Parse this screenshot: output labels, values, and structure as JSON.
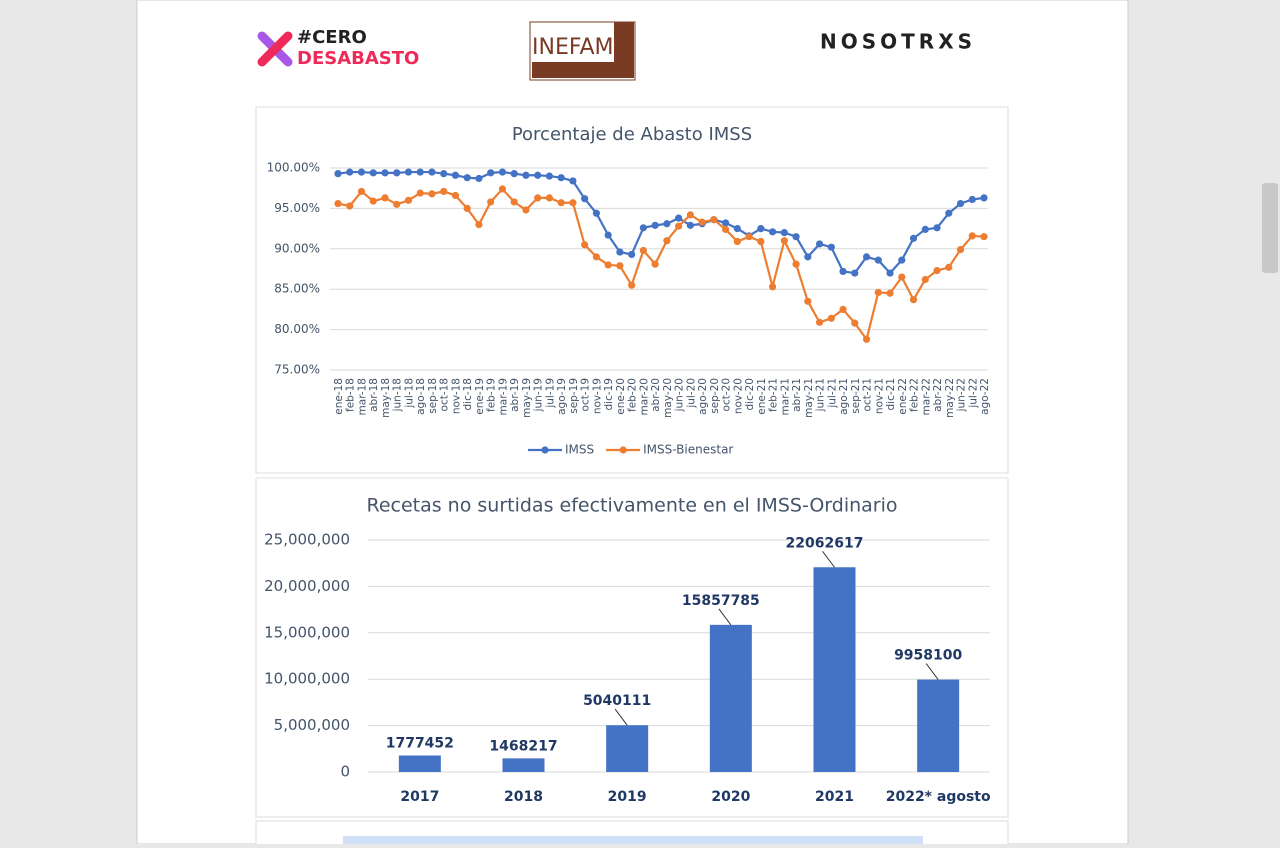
{
  "logos": {
    "cero_top": "#CERO",
    "cero_bottom": "DESABASTO",
    "inefam": "INEFAM",
    "nosotrxs": "NOSOTRXS"
  },
  "chart_data": [
    {
      "type": "line",
      "title": "Porcentaje de Abasto IMSS",
      "categories": [
        "ene-18",
        "feb-18",
        "mar-18",
        "abr-18",
        "may-18",
        "jun-18",
        "jul-18",
        "ago-18",
        "sep-18",
        "oct-18",
        "nov-18",
        "dic-18",
        "ene-19",
        "feb-19",
        "mar-19",
        "abr-19",
        "may-19",
        "jun-19",
        "jul-19",
        "ago-19",
        "sep-19",
        "oct-19",
        "nov-19",
        "dic-19",
        "ene-20",
        "feb-20",
        "mar-20",
        "abr-20",
        "may-20",
        "jun-20",
        "jul-20",
        "ago-20",
        "sep-20",
        "oct-20",
        "nov-20",
        "dic-20",
        "ene-21",
        "feb-21",
        "mar-21",
        "abr-21",
        "may-21",
        "jun-21",
        "jul-21",
        "ago-21",
        "sep-21",
        "oct-21",
        "nov-21",
        "dic-21",
        "ene-22",
        "feb-22",
        "mar-22",
        "abr-22",
        "may-22",
        "jun-22",
        "jul-22",
        "ago-22"
      ],
      "series": [
        {
          "name": "IMSS",
          "color": "#4472c4",
          "values": [
            99.3,
            99.5,
            99.5,
            99.4,
            99.4,
            99.4,
            99.5,
            99.5,
            99.5,
            99.3,
            99.1,
            98.8,
            98.7,
            99.4,
            99.5,
            99.3,
            99.1,
            99.1,
            99.0,
            98.8,
            98.4,
            96.2,
            94.4,
            91.7,
            89.6,
            89.3,
            92.6,
            92.9,
            93.1,
            93.8,
            92.9,
            93.1,
            93.6,
            93.2,
            92.5,
            91.6,
            92.5,
            92.1,
            92.0,
            91.5,
            89.0,
            90.6,
            90.2,
            87.2,
            87.0,
            89.0,
            88.6,
            87.0,
            88.6,
            91.3,
            92.4,
            92.6,
            94.4,
            95.6,
            96.1,
            96.3
          ]
        },
        {
          "name": "IMSS-Bienestar",
          "color": "#ed7d31",
          "values": [
            95.6,
            95.3,
            97.1,
            95.9,
            96.3,
            95.5,
            96.0,
            96.9,
            96.8,
            97.1,
            96.6,
            95.0,
            93.0,
            95.8,
            97.4,
            95.8,
            94.8,
            96.3,
            96.3,
            95.7,
            95.7,
            90.5,
            89.0,
            88.0,
            87.9,
            85.5,
            89.8,
            88.1,
            91.0,
            92.8,
            94.2,
            93.3,
            93.6,
            92.4,
            90.9,
            91.5,
            90.9,
            85.3,
            91.0,
            88.1,
            83.5,
            80.9,
            81.4,
            82.5,
            80.8,
            78.8,
            84.6,
            84.5,
            86.5,
            83.7,
            86.2,
            87.3,
            87.7,
            89.9,
            91.6,
            91.5
          ]
        }
      ],
      "ylim": [
        75,
        100
      ],
      "yticks": [
        {
          "value": 75,
          "label": "75.00%"
        },
        {
          "value": 80,
          "label": "80.00%"
        },
        {
          "value": 85,
          "label": "85.00%"
        },
        {
          "value": 90,
          "label": "90.00%"
        },
        {
          "value": 95,
          "label": "95.00%"
        },
        {
          "value": 100,
          "label": "100.00%"
        }
      ],
      "grid": true,
      "legend": "bottom"
    },
    {
      "type": "bar",
      "title": "Recetas no surtidas efectivamente en el IMSS-Ordinario",
      "categories": [
        "2017",
        "2018",
        "2019",
        "2020",
        "2021",
        "2022* agosto"
      ],
      "values": [
        1777452,
        1468217,
        5040111,
        15857785,
        22062617,
        9958100
      ],
      "color": "#4472c4",
      "ylim": [
        0,
        25000000
      ],
      "yticks": [
        0,
        {
          "value": 5000000,
          "label": "5,000,000"
        },
        {
          "value": 10000000,
          "label": "10,000,000"
        },
        {
          "value": 15000000,
          "label": "15,000,000"
        },
        {
          "value": 20000000,
          "label": "20,000,000"
        },
        {
          "value": 25000000,
          "label": "25,000,000"
        }
      ],
      "grid": true
    }
  ]
}
